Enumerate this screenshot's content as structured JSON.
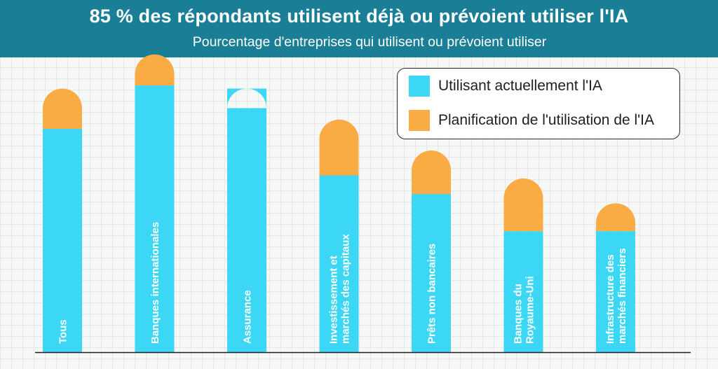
{
  "header": {
    "title": "85 % des répondants utilisent déjà ou prévoient utiliser l'IA",
    "subtitle": "Pourcentage d'entreprises qui utilisent ou prévoient utiliser"
  },
  "colors": {
    "current": "#3bd7f4",
    "planned": "#f9ac43",
    "header_bg": "#1a7f96",
    "label_text": "#ffffff",
    "axis": "#1f1f1f"
  },
  "chart_data": {
    "type": "bar",
    "stacked": true,
    "title": "85 % des répondants utilisent déjà ou prévoient utiliser l'IA",
    "subtitle": "Pourcentage d'entreprises qui utilisent ou prévoient utiliser",
    "categories": [
      [
        "Tous"
      ],
      [
        "Banques internationales"
      ],
      [
        "Assurance"
      ],
      [
        "Investissement et",
        "marchés des capitaux"
      ],
      [
        "Prêts non bancaires"
      ],
      [
        "Banques du",
        "Royaume-Uni"
      ],
      [
        "Infrastructure des",
        "marchés financiers"
      ]
    ],
    "series": [
      {
        "name": "Utilisant actuellement l'IA",
        "values": [
          72,
          86,
          85,
          57,
          51,
          39,
          39
        ]
      },
      {
        "name": "Planification de l'utilisation de l'IA",
        "values": [
          13,
          10,
          0,
          18,
          14,
          17,
          9
        ]
      }
    ],
    "ylim": [
      0,
      100
    ],
    "legend": "top-right",
    "grid": true,
    "value_labels": false
  }
}
